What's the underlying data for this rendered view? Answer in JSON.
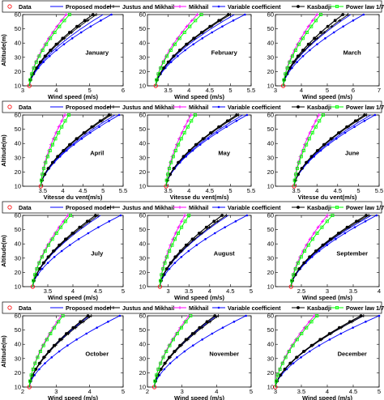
{
  "figure": {
    "series_styles": [
      {
        "name": "Data",
        "color": "#ff0000",
        "marker": "circle"
      },
      {
        "name": "Proposed model",
        "color": "#0000ff",
        "marker": "none"
      },
      {
        "name": "Justus and Mikhail",
        "color": "#000000",
        "marker": "plus"
      },
      {
        "name": "Mikhail",
        "color": "#ff00ff",
        "marker": "plus"
      },
      {
        "name": "Variable coefficient",
        "color": "#0000ff",
        "marker": "dot"
      },
      {
        "name": "Kasbadji",
        "color": "#000000",
        "marker": "filled-circle"
      },
      {
        "name": "Power law 1/7",
        "color": "#00ff00",
        "marker": "square"
      }
    ]
  },
  "legends": [
    {
      "items": [
        "Data",
        "Proposed model",
        "Justus and Mikhail",
        "Mikhail",
        "Variable coefficient",
        "Kasbadji",
        "Power law 1/7"
      ]
    },
    {
      "items": [
        "Data",
        "Proposed model",
        "Justus and Mikhail",
        "Mikhail",
        "Variable coefficient",
        "Kasbadji",
        "Power law 1/7"
      ]
    },
    {
      "items": [
        "Data",
        "Proposed model",
        "Justus and Mikhail",
        "Mikhail",
        "Variable coefficient",
        "Kasbadji",
        "Power law 1/7"
      ]
    },
    {
      "items": [
        "Data",
        "Proposed model",
        "Justus and Mikhail",
        "Mikhail",
        "Variable coefficient",
        "Kasbadji",
        "Power law 1/7"
      ]
    }
  ],
  "chart_data": [
    {
      "type": "line",
      "month": "January",
      "xlabel": "Wind speed (m/s)",
      "ylabel": "Altitude(m)",
      "xlim": [
        3,
        6
      ],
      "ylim": [
        10,
        60
      ],
      "xticks": [
        "3",
        "4",
        "5",
        "6"
      ],
      "yticks": [
        "10",
        "20",
        "30",
        "40",
        "50",
        "60"
      ],
      "x0": 3.2,
      "series": [
        {
          "name": "Data",
          "top": null
        },
        {
          "name": "Proposed model",
          "top": 5.4
        },
        {
          "name": "Justus and Mikhail",
          "top": 5.2
        },
        {
          "name": "Mikhail",
          "top": 4.3
        },
        {
          "name": "Variable coefficient",
          "top": 5.65
        },
        {
          "name": "Kasbadji",
          "top": 5.1
        },
        {
          "name": "Power law 1/7",
          "top": 4.4
        }
      ]
    },
    {
      "type": "line",
      "month": "February",
      "xlabel": "Wind speed (m/s)",
      "ylabel": "",
      "xlim": [
        3,
        5.5
      ],
      "ylim": [
        10,
        60
      ],
      "xticks": [
        "3.5",
        "4",
        "4.5",
        "5",
        "5.5"
      ],
      "yticks": [
        "10",
        "20",
        "30",
        "40",
        "50",
        "60"
      ],
      "x0": 3.2,
      "series": [
        {
          "name": "Data",
          "top": null
        },
        {
          "name": "Proposed model",
          "top": 5.1
        },
        {
          "name": "Justus and Mikhail",
          "top": 5.0
        },
        {
          "name": "Mikhail",
          "top": 4.2
        },
        {
          "name": "Variable coefficient",
          "top": 5.35
        },
        {
          "name": "Kasbadji",
          "top": 4.95
        },
        {
          "name": "Power law 1/7",
          "top": 4.3
        }
      ]
    },
    {
      "type": "line",
      "month": "March",
      "xlabel": "Wind speed (m/s)",
      "ylabel": "",
      "xlim": [
        3,
        7
      ],
      "ylim": [
        10,
        60
      ],
      "xticks": [
        "3",
        "4",
        "5",
        "6",
        "7"
      ],
      "yticks": [
        "10",
        "20",
        "30",
        "40",
        "50",
        "60"
      ],
      "x0": 3.3,
      "series": [
        {
          "name": "Data",
          "top": null
        },
        {
          "name": "Proposed model",
          "top": 5.9
        },
        {
          "name": "Justus and Mikhail",
          "top": 5.8
        },
        {
          "name": "Mikhail",
          "top": 4.6
        },
        {
          "name": "Variable coefficient",
          "top": 6.4
        },
        {
          "name": "Kasbadji",
          "top": 5.6
        },
        {
          "name": "Power law 1/7",
          "top": 4.75
        }
      ]
    },
    {
      "type": "line",
      "month": "April",
      "xlabel": "Vitesse du vent(m/s)",
      "ylabel": "Altitude(m)",
      "xlim": [
        3,
        5.5
      ],
      "ylim": [
        10,
        60
      ],
      "xticks": [
        "3.5",
        "4",
        "4.5",
        "5",
        "5.5"
      ],
      "yticks": [
        "10",
        "20",
        "30",
        "40",
        "50",
        "60"
      ],
      "x0": 3.45,
      "series": [
        {
          "name": "Data",
          "top": null
        },
        {
          "name": "Proposed model",
          "top": 5.3
        },
        {
          "name": "Justus and Mikhail",
          "top": 5.2
        },
        {
          "name": "Mikhail",
          "top": 4.05
        },
        {
          "name": "Variable coefficient",
          "top": 5.4
        },
        {
          "name": "Kasbadji",
          "top": 5.15
        },
        {
          "name": "Power law 1/7",
          "top": 4.15
        }
      ]
    },
    {
      "type": "line",
      "month": "May",
      "xlabel": "Vitesse du vent(m/s)",
      "ylabel": "",
      "xlim": [
        3,
        5.5
      ],
      "ylim": [
        10,
        60
      ],
      "xticks": [
        "3.5",
        "4",
        "4.5",
        "5",
        "5.5"
      ],
      "yticks": [
        "10",
        "20",
        "30",
        "40",
        "50",
        "60"
      ],
      "x0": 3.45,
      "series": [
        {
          "name": "Data",
          "top": null
        },
        {
          "name": "Proposed model",
          "top": 5.3
        },
        {
          "name": "Justus and Mikhail",
          "top": 5.2
        },
        {
          "name": "Mikhail",
          "top": 4.05
        },
        {
          "name": "Variable coefficient",
          "top": 5.4
        },
        {
          "name": "Kasbadji",
          "top": 5.15
        },
        {
          "name": "Power law 1/7",
          "top": 4.15
        }
      ]
    },
    {
      "type": "line",
      "month": "June",
      "xlabel": "Vitesse du vent(m/s)",
      "ylabel": "",
      "xlim": [
        3,
        5.5
      ],
      "ylim": [
        10,
        60
      ],
      "xticks": [
        "3.5",
        "4",
        "4.5",
        "5",
        "5.5"
      ],
      "yticks": [
        "10",
        "20",
        "30",
        "40",
        "50",
        "60"
      ],
      "x0": 3.45,
      "series": [
        {
          "name": "Data",
          "top": null
        },
        {
          "name": "Proposed model",
          "top": 5.3
        },
        {
          "name": "Justus and Mikhail",
          "top": 5.2
        },
        {
          "name": "Mikhail",
          "top": 4.05
        },
        {
          "name": "Variable coefficient",
          "top": 5.4
        },
        {
          "name": "Kasbadji",
          "top": 5.15
        },
        {
          "name": "Power law 1/7",
          "top": 4.15
        }
      ]
    },
    {
      "type": "line",
      "month": "July",
      "xlabel": "Wind speed (m/s)",
      "ylabel": "Altitude(m)",
      "xlim": [
        3,
        5
      ],
      "ylim": [
        10,
        60
      ],
      "xticks": [
        "3.5",
        "4",
        "4.5",
        "5"
      ],
      "yticks": [
        "10",
        "20",
        "30",
        "40",
        "50",
        "60"
      ],
      "x0": 3.2,
      "series": [
        {
          "name": "Data",
          "top": null
        },
        {
          "name": "Proposed model",
          "top": 4.55
        },
        {
          "name": "Justus and Mikhail",
          "top": 4.5
        },
        {
          "name": "Mikhail",
          "top": 3.9
        },
        {
          "name": "Variable coefficient",
          "top": 4.95
        },
        {
          "name": "Kasbadji",
          "top": 4.45
        },
        {
          "name": "Power law 1/7",
          "top": 3.95
        }
      ]
    },
    {
      "type": "line",
      "month": "August",
      "xlabel": "Wind speed (m/s)",
      "ylabel": "",
      "xlim": [
        2.5,
        5
      ],
      "ylim": [
        10,
        60
      ],
      "xticks": [
        "3",
        "3.5",
        "4",
        "4.5",
        "5"
      ],
      "yticks": [
        "10",
        "20",
        "30",
        "40",
        "50",
        "60"
      ],
      "x0": 2.8,
      "series": [
        {
          "name": "Data",
          "top": null
        },
        {
          "name": "Proposed model",
          "top": 4.45
        },
        {
          "name": "Justus and Mikhail",
          "top": 4.4
        },
        {
          "name": "Mikhail",
          "top": 3.4
        },
        {
          "name": "Variable coefficient",
          "top": 4.9
        },
        {
          "name": "Kasbadji",
          "top": 4.3
        },
        {
          "name": "Power law 1/7",
          "top": 3.5
        }
      ]
    },
    {
      "type": "line",
      "month": "September",
      "xlabel": "Wind speed (m/s)",
      "ylabel": "",
      "xlim": [
        2,
        4
      ],
      "ylim": [
        10,
        60
      ],
      "xticks": [
        "2.5",
        "3",
        "3.5",
        "4"
      ],
      "yticks": [
        "10",
        "20",
        "30",
        "40",
        "50",
        "60"
      ],
      "x0": 2.3,
      "series": [
        {
          "name": "Data",
          "top": null
        },
        {
          "name": "Proposed model",
          "top": 3.85
        },
        {
          "name": "Justus and Mikhail",
          "top": 3.8
        },
        {
          "name": "Mikhail",
          "top": 3.0
        },
        {
          "name": "Variable coefficient",
          "top": 3.95
        },
        {
          "name": "Kasbadji",
          "top": 3.75
        },
        {
          "name": "Power law 1/7",
          "top": 3.1
        }
      ]
    },
    {
      "type": "line",
      "month": "October",
      "xlabel": "Wind speed (m/s)",
      "ylabel": "Altitude(m)",
      "xlim": [
        2,
        5
      ],
      "ylim": [
        10,
        60
      ],
      "xticks": [
        "2",
        "3",
        "4",
        "5"
      ],
      "yticks": [
        "10",
        "20",
        "30",
        "40",
        "50",
        "60"
      ],
      "x0": 2.2,
      "series": [
        {
          "name": "Data",
          "top": null
        },
        {
          "name": "Proposed model",
          "top": 4.0
        },
        {
          "name": "Justus and Mikhail",
          "top": 4.05
        },
        {
          "name": "Mikhail",
          "top": 3.15
        },
        {
          "name": "Variable coefficient",
          "top": 4.9
        },
        {
          "name": "Kasbadji",
          "top": 3.95
        },
        {
          "name": "Power law 1/7",
          "top": 3.2
        }
      ]
    },
    {
      "type": "line",
      "month": "November",
      "xlabel": "Wind speed (m/s)",
      "ylabel": "",
      "xlim": [
        2,
        5
      ],
      "ylim": [
        10,
        60
      ],
      "xticks": [
        "2",
        "3",
        "4",
        "5"
      ],
      "yticks": [
        "10",
        "20",
        "30",
        "40",
        "50",
        "60"
      ],
      "x0": 2.2,
      "series": [
        {
          "name": "Data",
          "top": null
        },
        {
          "name": "Proposed model",
          "top": 4.0
        },
        {
          "name": "Justus and Mikhail",
          "top": 4.05
        },
        {
          "name": "Mikhail",
          "top": 3.2
        },
        {
          "name": "Variable coefficient",
          "top": 4.85
        },
        {
          "name": "Kasbadji",
          "top": 3.95
        },
        {
          "name": "Power law 1/7",
          "top": 3.25
        }
      ]
    },
    {
      "type": "line",
      "month": "December",
      "xlabel": "Wind speed (m/s)",
      "ylabel": "",
      "xlim": [
        3,
        5
      ],
      "ylim": [
        10,
        60
      ],
      "xticks": [
        "3",
        "3.5",
        "4",
        "4.5",
        "5"
      ],
      "yticks": [
        "10",
        "20",
        "30",
        "40",
        "50",
        "60"
      ],
      "x0": 3.0,
      "series": [
        {
          "name": "Data",
          "top": null
        },
        {
          "name": "Proposed model",
          "top": 4.7
        },
        {
          "name": "Justus and Mikhail",
          "top": 4.7
        },
        {
          "name": "Mikhail",
          "top": 3.75
        },
        {
          "name": "Variable coefficient",
          "top": 5.0
        },
        {
          "name": "Kasbadji",
          "top": 4.65
        },
        {
          "name": "Power law 1/7",
          "top": 3.8
        }
      ]
    }
  ]
}
